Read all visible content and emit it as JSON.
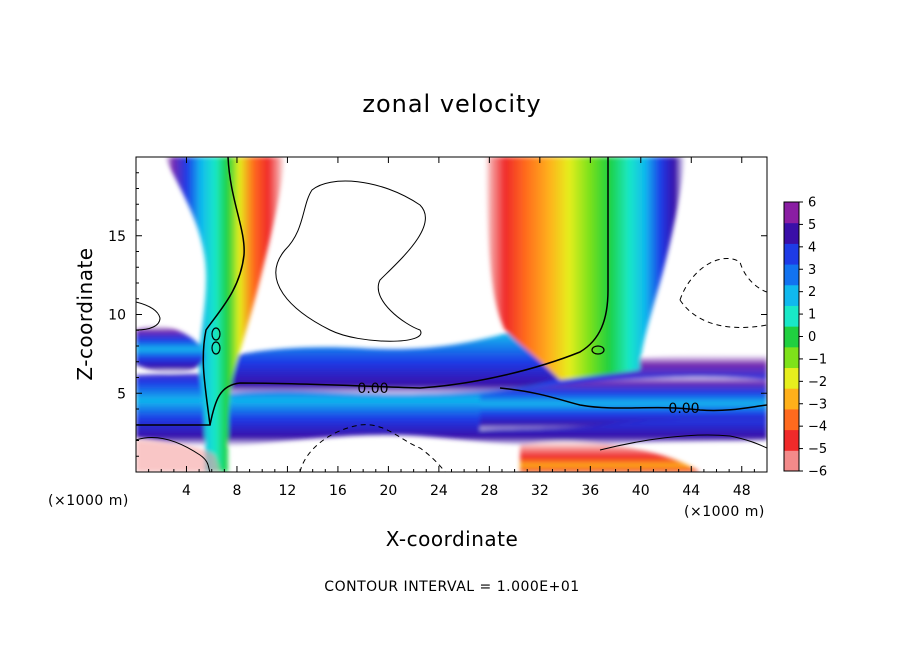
{
  "chart_data": {
    "type": "heatmap",
    "title": "zonal velocity",
    "xlabel": "X-coordinate",
    "ylabel": "Z-coordinate",
    "x_unit": "(×1000 m)",
    "z_unit": "(×1000 m)",
    "xlim": [
      0,
      50
    ],
    "ylim": [
      0,
      20
    ],
    "x_ticks": [
      4,
      8,
      12,
      16,
      20,
      24,
      28,
      32,
      36,
      40,
      44,
      48
    ],
    "y_ticks": [
      5,
      10,
      15
    ],
    "colorbar": {
      "ticks": [
        6,
        5,
        4,
        3,
        2,
        1,
        0,
        -1,
        -2,
        -3,
        -4,
        -5,
        -6
      ],
      "range": [
        -6,
        6
      ],
      "colors": [
        "#8a1ea3",
        "#3a0fa8",
        "#1e3be6",
        "#1273f0",
        "#10b9ee",
        "#19e8c7",
        "#20d040",
        "#7ee21a",
        "#e6ee1e",
        "#ffb01a",
        "#ff6a1e",
        "#f02a2a",
        "#f38a8a"
      ]
    },
    "contour_labels": [
      "0.00",
      "0.00"
    ],
    "note": "CONTOUR INTERVAL = 1.000E+01"
  }
}
